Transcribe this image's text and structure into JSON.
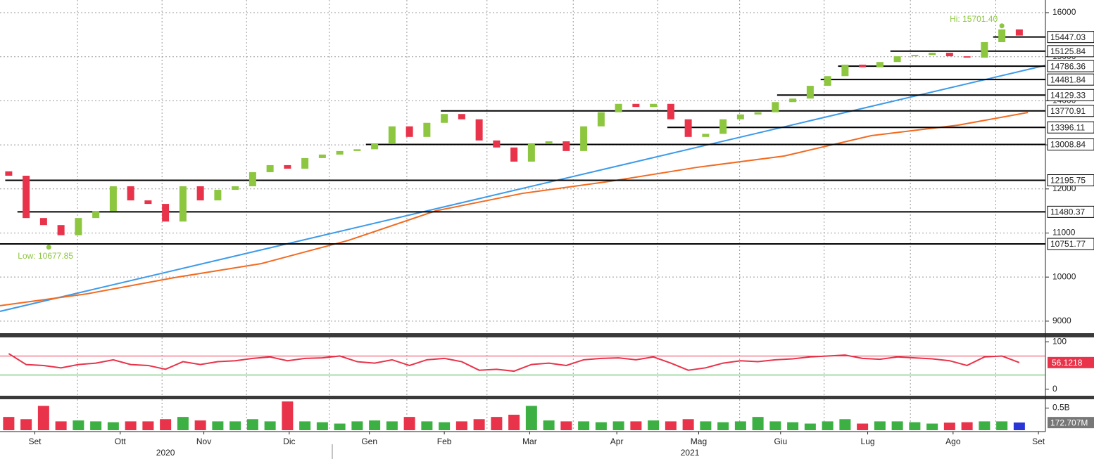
{
  "chart_data": [
    {
      "type": "candlestick",
      "x": [
        0.5,
        1.5,
        2.5,
        3.5,
        4.5,
        5.5,
        6.5,
        7.5,
        8.5,
        9.5,
        10.5,
        11.5,
        12.5,
        13.5,
        14.5,
        15.5,
        16.5,
        17.5,
        18.5,
        19.5,
        20.5,
        21.5,
        22.5,
        23.5,
        24.5,
        25.5,
        26.5,
        27.5,
        28.5,
        29.5,
        30.5,
        31.5,
        32.5,
        33.5,
        34.5,
        35.5,
        36.5,
        37.5,
        38.5,
        39.5,
        40.5,
        41.5,
        42.5,
        43.5,
        44.5,
        45.5,
        46.5,
        47.5,
        48.5,
        49.5,
        50.5,
        51.5,
        52.5,
        53.5,
        54.5,
        55.5,
        56.5,
        57.5,
        58.5
      ],
      "open": [
        12400,
        12300,
        11340,
        11180,
        10950,
        11340,
        11500,
        12060,
        11740,
        11660,
        11260,
        12060,
        11740,
        11980,
        12060,
        12380,
        12540,
        12460,
        12700,
        12780,
        12860,
        12900,
        13020,
        13420,
        13180,
        13500,
        13700,
        13580,
        13100,
        12940,
        12620,
        13020,
        13080,
        12860,
        13420,
        13740,
        13930,
        13860,
        13930,
        13580,
        13180,
        13250,
        13580,
        13690,
        13740,
        13970,
        14050,
        14340,
        14560,
        14820,
        14760,
        14880,
        15010,
        15040,
        15090,
        15010,
        14980,
        15330,
        15620
      ],
      "close": [
        12300,
        11340,
        11180,
        10950,
        11340,
        11500,
        12060,
        11740,
        11660,
        11260,
        12060,
        11740,
        11980,
        12060,
        12380,
        12540,
        12460,
        12700,
        12780,
        12860,
        12900,
        13020,
        13420,
        13180,
        13500,
        13700,
        13580,
        13100,
        12940,
        12620,
        13020,
        13080,
        12860,
        13420,
        13740,
        13930,
        13860,
        13930,
        13580,
        13180,
        13250,
        13580,
        13690,
        13740,
        13970,
        14050,
        14340,
        14560,
        14820,
        14760,
        14880,
        15010,
        15040,
        15090,
        15010,
        14980,
        15330,
        15620,
        15480
      ],
      "color_up": "#8dc63f",
      "color_down": "#e8334a",
      "xlim": [
        0,
        60
      ],
      "ylim": [
        8727,
        16287
      ],
      "yticks": [
        9000,
        10000,
        11000,
        12000,
        13000,
        14000,
        15000,
        16000
      ],
      "grid": true,
      "lines": [
        {
          "color": "#3d9be9",
          "x": [
            0,
            60
          ],
          "values": [
            9222,
            14804
          ]
        },
        {
          "color": "#f26b21",
          "x": [
            0,
            5,
            10,
            15,
            20,
            25,
            30,
            35,
            40,
            45,
            50,
            55,
            59
          ],
          "values": [
            9350,
            9620,
            9987,
            10306,
            10833,
            11502,
            11900,
            12172,
            12490,
            12746,
            13209,
            13448,
            13735
          ]
        }
      ],
      "levels": {
        "values": [
          15447.03,
          15125.84,
          14786.36,
          14481.84,
          14129.33,
          13770.91,
          13396.11,
          13008.84,
          12195.75,
          11480.37,
          10751.77
        ],
        "starts": [
          57.0,
          51.1,
          48.1,
          47.1,
          44.6,
          25.3,
          38.3,
          21.0,
          0.3,
          1.0,
          0
        ]
      },
      "annotations": [
        {
          "text": "Hi: 15701.40",
          "value": 15701.4,
          "x": 57.5
        },
        {
          "text": "Low: 10677.85",
          "value": 10677.85,
          "x": 2.8
        }
      ]
    },
    {
      "type": "line",
      "values": [
        75,
        52,
        50,
        45,
        52,
        55,
        62,
        52,
        50,
        42,
        58,
        52,
        58,
        60,
        65,
        68,
        60,
        65,
        66,
        70,
        58,
        55,
        62,
        50,
        62,
        65,
        58,
        40,
        42,
        38,
        52,
        55,
        50,
        62,
        65,
        66,
        62,
        68,
        55,
        40,
        45,
        55,
        60,
        58,
        62,
        64,
        68,
        70,
        72,
        65,
        63,
        68,
        66,
        64,
        60,
        50,
        68,
        70,
        56.1218
      ],
      "color": "#e8334a",
      "ylim": [
        -13.8,
        109.2
      ],
      "yticks": [
        0,
        100
      ],
      "bands": [
        {
          "value": 70,
          "color": "#e8334a"
        },
        {
          "value": 30,
          "color": "#3cb043"
        }
      ]
    },
    {
      "type": "bar",
      "values": [
        0.3,
        0.25,
        0.55,
        0.2,
        0.22,
        0.2,
        0.18,
        0.2,
        0.2,
        0.25,
        0.3,
        0.22,
        0.2,
        0.2,
        0.25,
        0.2,
        0.65,
        0.2,
        0.18,
        0.15,
        0.2,
        0.22,
        0.2,
        0.3,
        0.2,
        0.18,
        0.2,
        0.25,
        0.3,
        0.35,
        0.55,
        0.22,
        0.2,
        0.2,
        0.18,
        0.2,
        0.2,
        0.22,
        0.2,
        0.25,
        0.2,
        0.18,
        0.2,
        0.3,
        0.2,
        0.18,
        0.15,
        0.2,
        0.25,
        0.15,
        0.2,
        0.2,
        0.18,
        0.15,
        0.17,
        0.18,
        0.2,
        0.2,
        0.172707
      ],
      "last_label": "172.707M",
      "color_up": "#3cb043",
      "color_down": "#e8334a",
      "color_last": "#2a35d6",
      "ylim": [
        0,
        0.7
      ],
      "yticks": [
        {
          "value": 0.5,
          "label": "0.5B"
        }
      ],
      "xticks": [
        {
          "value": 2.0,
          "label": "Set"
        },
        {
          "value": 6.9,
          "label": "Ott"
        },
        {
          "value": 11.7,
          "label": "Nov"
        },
        {
          "value": 16.6,
          "label": "Dic"
        },
        {
          "value": 21.2,
          "label": "Gen"
        },
        {
          "value": 25.5,
          "label": "Feb"
        },
        {
          "value": 30.4,
          "label": "Mar"
        },
        {
          "value": 35.4,
          "label": "Apr"
        },
        {
          "value": 40.1,
          "label": "Mag"
        },
        {
          "value": 44.8,
          "label": "Giu"
        },
        {
          "value": 49.8,
          "label": "Lug"
        },
        {
          "value": 54.7,
          "label": "Ago"
        },
        {
          "value": 59.6,
          "label": "Set"
        }
      ],
      "years": [
        {
          "value": 9.5,
          "label": "2020"
        },
        {
          "value": 39.6,
          "label": "2021"
        }
      ]
    }
  ]
}
